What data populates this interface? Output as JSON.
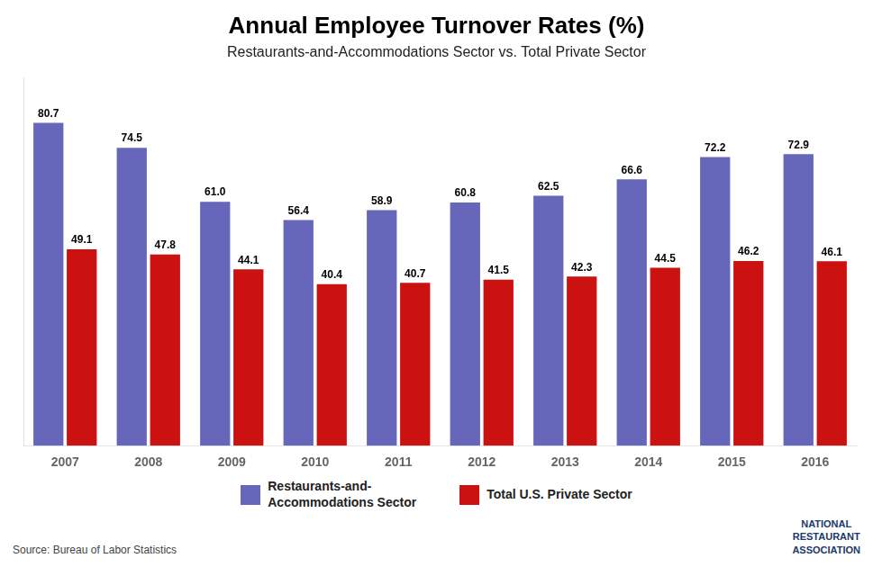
{
  "chart_data": {
    "type": "bar",
    "title": "Annual Employee Turnover Rates (%)",
    "subtitle": "Restaurants-and-Accommodations Sector vs. Total Private Sector",
    "categories": [
      "2007",
      "2008",
      "2009",
      "2010",
      "2011",
      "2012",
      "2013",
      "2014",
      "2015",
      "2016"
    ],
    "series": [
      {
        "name": "Restaurants-and-\nAccommodations Sector",
        "color": "#6666bb",
        "values": [
          80.7,
          74.5,
          61.0,
          56.4,
          58.9,
          60.8,
          62.5,
          66.6,
          72.2,
          72.9
        ],
        "value_labels": [
          "80.7",
          "74.5",
          "61.0",
          "56.4",
          "58.9",
          "60.8",
          "62.5",
          "66.6",
          "72.2",
          "72.9"
        ]
      },
      {
        "name": "Total U.S. Private Sector",
        "color": "#cc1111",
        "values": [
          49.1,
          47.8,
          44.1,
          40.4,
          40.7,
          41.5,
          42.3,
          44.5,
          46.2,
          46.1
        ],
        "value_labels": [
          "49.1",
          "47.8",
          "44.1",
          "40.4",
          "40.7",
          "41.5",
          "42.3",
          "44.5",
          "46.2",
          "46.1"
        ]
      }
    ],
    "ylim": [
      0,
      92
    ],
    "grid": false,
    "legend": "bottom",
    "data_labels": true,
    "tick_labels": "x",
    "annotations": [
      "Source: Bureau of Labor Statistics",
      "NATIONAL\nRESTAURANT\nASSOCIATION"
    ]
  }
}
